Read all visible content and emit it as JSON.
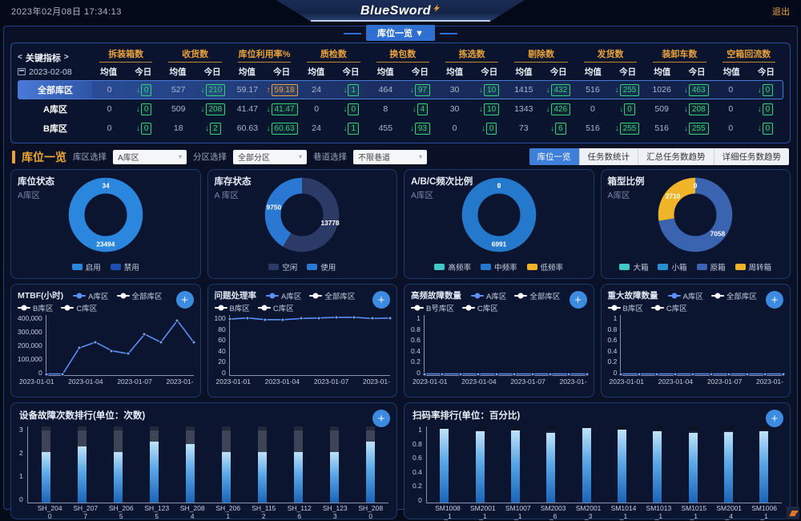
{
  "colors": {
    "accent_orange": "#e9a23b",
    "green": "#35d07a",
    "tab_blue": "#3f7fd9",
    "line_blue": "#5b8ff9"
  },
  "icons": {
    "plus": "+",
    "chevron_down": "▾",
    "caret_down": "▼",
    "up_arrow": "↑",
    "down_arrow": "↓",
    "angle_left": "<",
    "angle_right": ">"
  },
  "header": {
    "datetime": "2023年02月08日 17:34:13",
    "logo": "BlueSword",
    "logout": "退出",
    "view_button": "库位一览"
  },
  "kpi": {
    "title": "关键指标",
    "date": "2023-02-08",
    "subheaders": [
      "均值",
      "今日"
    ],
    "metrics": [
      "拆装箱数",
      "收货数",
      "库位利用率%",
      "质检数",
      "换包数",
      "拣选数",
      "剔除数",
      "发货数",
      "装卸车数",
      "空箱回流数"
    ],
    "rows": [
      {
        "name": "全部库区",
        "selected": true,
        "cells": [
          {
            "mean": "0",
            "today": "0",
            "dir": "down",
            "accent": "green"
          },
          {
            "mean": "527",
            "today": "210",
            "dir": "down",
            "accent": "green"
          },
          {
            "mean": "59.17",
            "today": "59.18",
            "dir": "up",
            "accent": "orange"
          },
          {
            "mean": "24",
            "today": "1",
            "dir": "down",
            "accent": "green"
          },
          {
            "mean": "464",
            "today": "97",
            "dir": "down",
            "accent": "green"
          },
          {
            "mean": "30",
            "today": "10",
            "dir": "down",
            "accent": "green"
          },
          {
            "mean": "1415",
            "today": "432",
            "dir": "down",
            "accent": "green"
          },
          {
            "mean": "516",
            "today": "255",
            "dir": "down",
            "accent": "green"
          },
          {
            "mean": "1026",
            "today": "463",
            "dir": "down",
            "accent": "green"
          },
          {
            "mean": "0",
            "today": "0",
            "dir": "down",
            "accent": "green"
          }
        ]
      },
      {
        "name": "A库区",
        "selected": false,
        "cells": [
          {
            "mean": "0",
            "today": "0",
            "dir": "down",
            "accent": "green"
          },
          {
            "mean": "509",
            "today": "208",
            "dir": "down",
            "accent": "green"
          },
          {
            "mean": "41.47",
            "today": "41.47",
            "dir": "down",
            "accent": "green"
          },
          {
            "mean": "0",
            "today": "0",
            "dir": "down",
            "accent": "green"
          },
          {
            "mean": "8",
            "today": "4",
            "dir": "down",
            "accent": "green"
          },
          {
            "mean": "30",
            "today": "10",
            "dir": "down",
            "accent": "green"
          },
          {
            "mean": "1343",
            "today": "426",
            "dir": "down",
            "accent": "green"
          },
          {
            "mean": "0",
            "today": "0",
            "dir": "down",
            "accent": "green"
          },
          {
            "mean": "509",
            "today": "208",
            "dir": "down",
            "accent": "green"
          },
          {
            "mean": "0",
            "today": "0",
            "dir": "down",
            "accent": "green"
          }
        ]
      },
      {
        "name": "B库区",
        "selected": false,
        "cells": [
          {
            "mean": "0",
            "today": "0",
            "dir": "down",
            "accent": "green"
          },
          {
            "mean": "18",
            "today": "2",
            "dir": "down",
            "accent": "green"
          },
          {
            "mean": "60.63",
            "today": "60.63",
            "dir": "down",
            "accent": "green"
          },
          {
            "mean": "24",
            "today": "1",
            "dir": "down",
            "accent": "green"
          },
          {
            "mean": "455",
            "today": "93",
            "dir": "down",
            "accent": "green"
          },
          {
            "mean": "0",
            "today": "0",
            "dir": "down",
            "accent": "green"
          },
          {
            "mean": "73",
            "today": "6",
            "dir": "down",
            "accent": "green"
          },
          {
            "mean": "516",
            "today": "255",
            "dir": "down",
            "accent": "green"
          },
          {
            "mean": "516",
            "today": "255",
            "dir": "down",
            "accent": "green"
          },
          {
            "mean": "0",
            "today": "0",
            "dir": "down",
            "accent": "green"
          }
        ]
      }
    ]
  },
  "toolbar": {
    "title": "库位一览",
    "filters": [
      {
        "label": "库区选择",
        "value": "A库区"
      },
      {
        "label": "分区选择",
        "value": "全部分区"
      },
      {
        "label": "巷道选择",
        "value": "不限巷道"
      }
    ],
    "tabs": [
      {
        "label": "库位一览",
        "active": true
      },
      {
        "label": "任务数统计",
        "active": false
      },
      {
        "label": "汇总任务数趋势",
        "active": false
      },
      {
        "label": "详细任务数趋势",
        "active": false
      }
    ]
  },
  "chart_data": {
    "donuts": [
      {
        "type": "pie",
        "title": "库位状态",
        "subtitle": "A库区",
        "segments": [
          {
            "label": "禁用",
            "value": 34,
            "color": "#1d4fae"
          },
          {
            "label": "启用",
            "value": 23494,
            "color": "#2b87dd"
          }
        ],
        "legend": [
          {
            "label": "启用",
            "color": "#2b87dd"
          },
          {
            "label": "禁用",
            "color": "#1d4fae"
          }
        ]
      },
      {
        "type": "pie",
        "title": "库存状态",
        "subtitle": "A 库区",
        "segments": [
          {
            "label": "空闲",
            "value": 13778,
            "color": "#2b3a66"
          },
          {
            "label": "使用",
            "value": 9750,
            "color": "#2b78d4"
          }
        ],
        "legend": [
          {
            "label": "空闲",
            "color": "#2b3a66"
          },
          {
            "label": "使用",
            "color": "#2b78d4"
          }
        ]
      },
      {
        "type": "pie",
        "title": "A/B/C频次比例",
        "subtitle": "A库区",
        "segments": [
          {
            "label": "高频率",
            "value": 0,
            "color": "#3fc8c8"
          },
          {
            "label": "中频率",
            "value": 6991,
            "color": "#2579cc"
          },
          {
            "label": "低频率",
            "value": 0,
            "color": "#f0b428"
          }
        ],
        "legend": [
          {
            "label": "高频率",
            "color": "#3fc8c8"
          },
          {
            "label": "中频率",
            "color": "#2579cc"
          },
          {
            "label": "低频率",
            "color": "#f0b428"
          }
        ]
      },
      {
        "type": "pie",
        "title": "箱型比例",
        "subtitle": "A库区",
        "segments": [
          {
            "label": "大箱",
            "value": 0,
            "color": "#3fc8c8"
          },
          {
            "label": "小箱",
            "value": 0,
            "color": "#2590d0"
          },
          {
            "label": "原箱",
            "value": 7058,
            "color": "#3a63b0"
          },
          {
            "label": "周转箱",
            "value": 2710,
            "color": "#f0b428"
          }
        ],
        "legend": [
          {
            "label": "大箱",
            "color": "#3fc8c8"
          },
          {
            "label": "小箱",
            "color": "#2590d0"
          },
          {
            "label": "原箱",
            "color": "#3a63b0"
          },
          {
            "label": "周转箱",
            "color": "#f0b428"
          }
        ]
      }
    ],
    "linecharts": [
      {
        "type": "line",
        "title": "MTBF(小时)",
        "legend": [
          {
            "label": "A库区",
            "color": "#5b8ff9"
          },
          {
            "label": "全部库区",
            "color": "#ffffff"
          },
          {
            "label": "B库区",
            "color": "#ffffff"
          },
          {
            "label": "C库区",
            "color": "#ffffff"
          }
        ],
        "y_max": 400000,
        "y_ticks": [
          "400,000",
          "300,000",
          "200,000",
          "100,000",
          "0"
        ],
        "x_labels": [
          "2023-01-01",
          "2023-01-04",
          "2023-01-07",
          "2023-01-"
        ],
        "values": [
          0,
          0,
          180000,
          220000,
          160000,
          140000,
          275000,
          220000,
          370000,
          220000
        ]
      },
      {
        "type": "line",
        "title": "问题处理率",
        "legend": [
          {
            "label": "A库区",
            "color": "#5b8ff9"
          },
          {
            "label": "全部库区",
            "color": "#ffffff"
          },
          {
            "label": "B库区",
            "color": "#ffffff"
          },
          {
            "label": "C库区",
            "color": "#ffffff"
          }
        ],
        "y_max": 100,
        "y_ticks": [
          "100",
          "80",
          "60",
          "40",
          "20",
          "0"
        ],
        "x_labels": [
          "2023-01-01",
          "2023-01-04",
          "2023-01-07",
          "2023-01-"
        ],
        "values": [
          95,
          97,
          94,
          94,
          96,
          97,
          98,
          98,
          96,
          97
        ]
      },
      {
        "type": "line",
        "title": "高频故障数量",
        "legend": [
          {
            "label": "A库区",
            "color": "#5b8ff9"
          },
          {
            "label": "全部库区",
            "color": "#ffffff"
          },
          {
            "label": "B号库区",
            "color": "#ffffff"
          },
          {
            "label": "C库区",
            "color": "#ffffff"
          }
        ],
        "y_max": 1,
        "y_ticks": [
          "1",
          "0.8",
          "0.6",
          "0.4",
          "0.2",
          "0"
        ],
        "x_labels": [
          "2023-01-01",
          "2023-01-04",
          "2023-01-07",
          "2023-01-"
        ],
        "values": [
          0,
          0,
          0,
          0,
          0,
          0,
          0,
          0,
          0,
          0
        ]
      },
      {
        "type": "line",
        "title": "重大故障数量",
        "legend": [
          {
            "label": "A库区",
            "color": "#5b8ff9"
          },
          {
            "label": "全部库区",
            "color": "#ffffff"
          },
          {
            "label": "B库区",
            "color": "#ffffff"
          },
          {
            "label": "C库区",
            "color": "#ffffff"
          }
        ],
        "y_max": 1,
        "y_ticks": [
          "1",
          "0.8",
          "0.6",
          "0.4",
          "0.2",
          "0"
        ],
        "x_labels": [
          "2023-01-01",
          "2023-01-04",
          "2023-01-07",
          "2023-01-"
        ],
        "values": [
          0,
          0,
          0,
          0,
          0,
          0,
          0,
          0,
          0,
          0
        ]
      }
    ],
    "barcharts": [
      {
        "type": "bar",
        "title": "设备故障次数排行(单位：次数)",
        "y_max": 3,
        "y_ticks": [
          "3",
          "2",
          "1",
          "0"
        ],
        "track_top": "#202839",
        "track": "#3c4456",
        "categories": [
          "SH_2040",
          "SH_2077",
          "SH_2065",
          "SH_1235",
          "SH_2084",
          "SH_2061",
          "SH_1152",
          "SH_1126",
          "SH_1233",
          "SH_2080"
        ],
        "values": [
          2,
          2.2,
          2,
          2.4,
          2.3,
          2,
          2,
          2,
          2,
          2.4
        ]
      },
      {
        "type": "bar",
        "title": "扫码率排行(单位：百分比)",
        "y_max": 1,
        "y_ticks": [
          "1",
          "0.8",
          "0.6",
          "0.4",
          "0.2",
          "0"
        ],
        "track_top": "#0c1322",
        "track": "#17213c",
        "categories": [
          "SM1008_1",
          "SM2001_1",
          "SM1007_1",
          "SM2003_6",
          "SM2001_3",
          "SM1014_1",
          "SM1013_1",
          "SM1015_1",
          "SM2001_4",
          "SM1006_1"
        ],
        "values": [
          0.97,
          0.94,
          0.95,
          0.92,
          0.98,
          0.96,
          0.94,
          0.92,
          0.93,
          0.94
        ]
      }
    ]
  }
}
